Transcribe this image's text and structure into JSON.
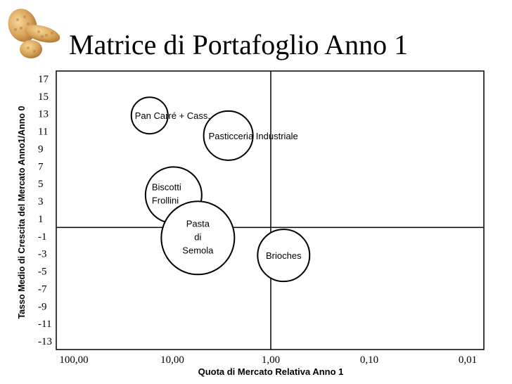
{
  "chart_data": {
    "type": "bubble",
    "title": "Matrice di Portafoglio Anno 1",
    "xlabel": "Quota di Mercato Relativa Anno 1",
    "ylabel": "Tasso Medio di Crescita del Mercato Anno1/Anno 0",
    "x_scale": "log-reversed",
    "xlim": [
      100,
      0.01
    ],
    "ylim": [
      -13,
      17
    ],
    "x_ticks": [
      "100,00",
      "10,00",
      "1,00",
      "0,10",
      "0,01"
    ],
    "y_ticks": [
      "17",
      "15",
      "13",
      "11",
      "9",
      "7",
      "5",
      "3",
      "1",
      "-1",
      "-3",
      "-5",
      "-7",
      "-9",
      "-11",
      "-13"
    ],
    "dividers": {
      "x": 1,
      "y": 0
    },
    "bubbles": [
      {
        "name": "Pan Carré + Cass.",
        "x": 17,
        "y": 12.8
      },
      {
        "name": "Pasticceria Industriale",
        "x": 2.7,
        "y": 10.5
      },
      {
        "name": "Biscotti Frollini",
        "x": 9.7,
        "y": 3.7
      },
      {
        "name": "Pasta di Semola",
        "x": 5.5,
        "y": -1.2
      },
      {
        "name": "Brioches",
        "x": 0.74,
        "y": -3.2
      }
    ]
  },
  "colors": {
    "background": "#ffffff",
    "axis": "#000000",
    "bubble_fill": "#ffffff",
    "bubble_stroke": "#000000",
    "logo": "#d9a55a"
  },
  "logo_icon": "pasta-shapes-logo"
}
